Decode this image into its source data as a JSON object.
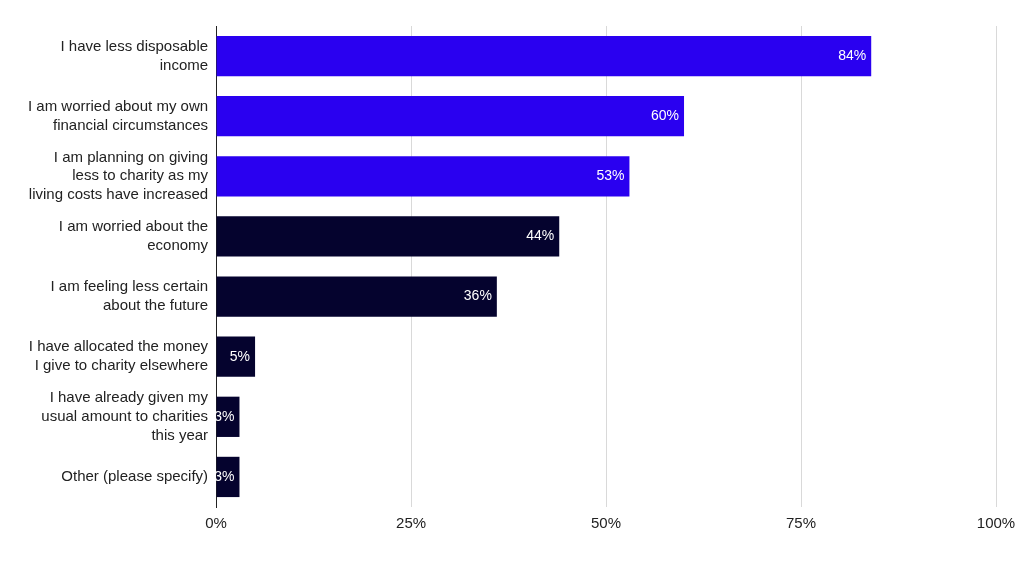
{
  "chart_data": {
    "type": "bar",
    "orientation": "horizontal",
    "categories": [
      "I have less disposable income",
      "I am worried about my own financial circumstances",
      "I am planning on giving less to charity as my living costs have increased",
      "I am worried about the economy",
      "I am feeling less certain about the future",
      "I have allocated the money I give to charity elsewhere",
      "I have already given my usual amount to charities this year",
      "Other (please specify)"
    ],
    "values": [
      84,
      60,
      53,
      44,
      36,
      5,
      3,
      3
    ],
    "value_labels": [
      "84%",
      "60%",
      "53%",
      "44%",
      "36%",
      "5%",
      "3%",
      "3%"
    ],
    "colors": [
      "#2a00f0",
      "#2a00f0",
      "#2a00f0",
      "#05032e",
      "#05032e",
      "#05032e",
      "#05032e",
      "#05032e"
    ],
    "xlim": [
      0,
      100
    ],
    "xticks": [
      {
        "value": 0,
        "label": "0%"
      },
      {
        "value": 25,
        "label": "25%"
      },
      {
        "value": 50,
        "label": "50%"
      },
      {
        "value": 75,
        "label": "75%"
      },
      {
        "value": 100,
        "label": "100%"
      }
    ],
    "grid": true,
    "data_labels": true,
    "legend": "none"
  }
}
